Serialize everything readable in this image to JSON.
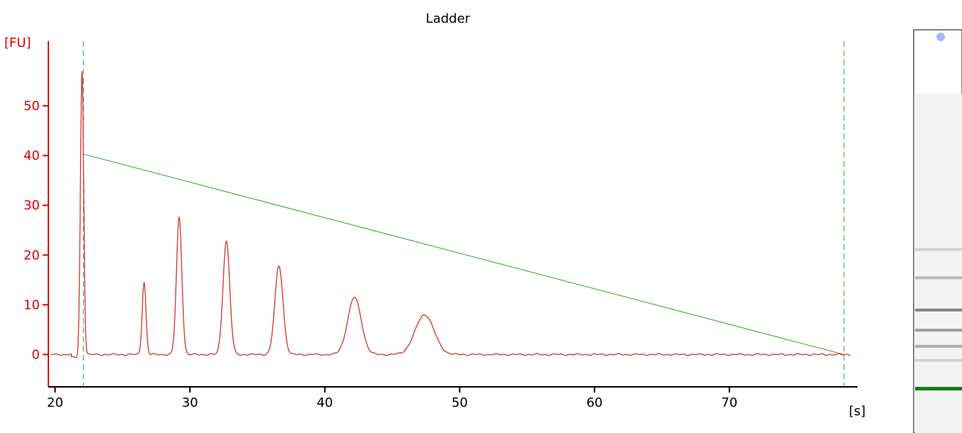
{
  "chart_data": {
    "type": "line",
    "title": "Ladder",
    "ylabel": "[FU]",
    "xlabel": "[s]",
    "xlim": [
      19.5,
      79.5
    ],
    "ylim": [
      -6.5,
      63
    ],
    "x_ticks": [
      20,
      30,
      40,
      50,
      60,
      70
    ],
    "y_ticks": [
      0,
      10,
      20,
      30,
      40,
      50
    ],
    "grid": false,
    "series": [
      {
        "color": "#d23232",
        "peaks": [
          {
            "x": 22.0,
            "y": 57,
            "width": 0.12
          },
          {
            "x": 26.6,
            "y": 14.5,
            "width": 0.14
          },
          {
            "x": 29.2,
            "y": 27.5,
            "width": 0.2
          },
          {
            "x": 32.7,
            "y": 22.8,
            "width": 0.25
          },
          {
            "x": 36.6,
            "y": 17.8,
            "width": 0.3
          },
          {
            "x": 42.2,
            "y": 11.5,
            "width": 0.5
          },
          {
            "x": 47.4,
            "y": 8.0,
            "width": 0.7
          }
        ]
      }
    ],
    "alignment_line": {
      "x": [
        22.1,
        78.5
      ],
      "y": [
        40.3,
        0
      ],
      "color": "#3a9a3a"
    },
    "markers": [
      {
        "x": 22.1,
        "color": "#3a9a3a",
        "style": "dashed"
      },
      {
        "x": 78.5,
        "color": "#3a9a3a",
        "style": "dashed"
      }
    ],
    "axis_colors": {
      "y": "#e00000",
      "x": "#000000"
    }
  },
  "gel_lane": {
    "bands": [
      {
        "pos": 0.545,
        "intensity": 0.3,
        "color": "#808080"
      },
      {
        "pos": 0.615,
        "intensity": 0.45,
        "color": "#707070"
      },
      {
        "pos": 0.695,
        "intensity": 0.75,
        "color": "#606060"
      },
      {
        "pos": 0.745,
        "intensity": 0.65,
        "color": "#707070"
      },
      {
        "pos": 0.785,
        "intensity": 0.6,
        "color": "#808080"
      },
      {
        "pos": 0.82,
        "intensity": 0.4,
        "color": "#a0a0a0"
      },
      {
        "pos": 0.89,
        "intensity": 1.0,
        "color": "#1a7a1a"
      }
    ],
    "marker_color": "#aab4ff"
  }
}
